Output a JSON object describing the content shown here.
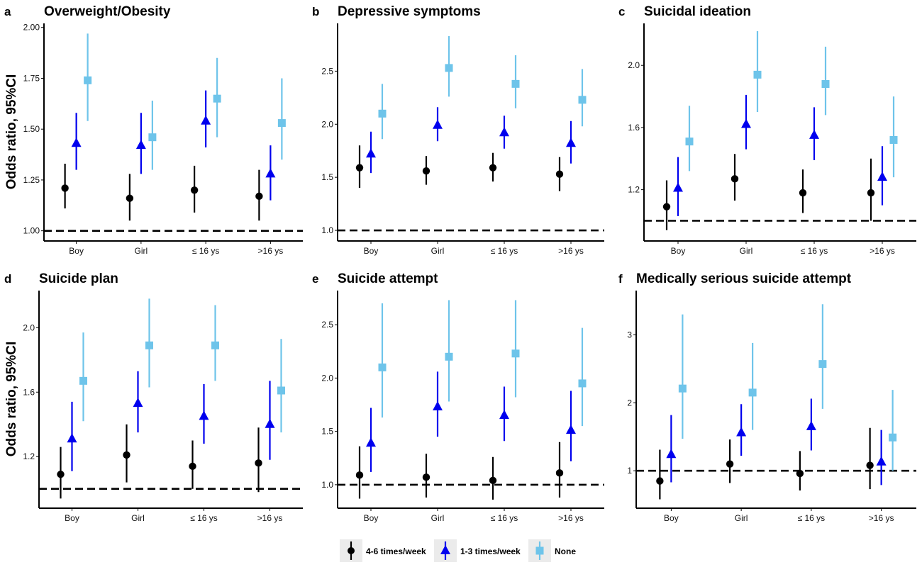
{
  "legend": [
    {
      "name": "4-6 times/week",
      "color": "#000000",
      "marker": "circle"
    },
    {
      "name": "1-3 times/week",
      "color": "#0000ee",
      "marker": "triangle"
    },
    {
      "name": "None",
      "color": "#6ec4ea",
      "marker": "square"
    }
  ],
  "ylabel": "Odds ratio, 95%CI",
  "chart_data": [
    {
      "letter": "a",
      "type": "scatter",
      "title": "Overweight/Obesity",
      "categories": [
        "Boy",
        "Girl",
        "≤ 16 ys",
        ">16 ys"
      ],
      "ylim": [
        0.95,
        2.02
      ],
      "yticks": [
        1.0,
        1.25,
        1.5,
        1.75,
        2.0
      ],
      "ytick_labels": [
        "1.00",
        "1.25",
        "1.50",
        "1.75",
        "2.00"
      ],
      "reference_line": 1,
      "series": [
        {
          "name": "4-6 times/week",
          "values": [
            1.21,
            1.16,
            1.2,
            1.17
          ],
          "lower": [
            1.11,
            1.05,
            1.09,
            1.05
          ],
          "upper": [
            1.33,
            1.28,
            1.32,
            1.3
          ]
        },
        {
          "name": "1-3 times/week",
          "values": [
            1.43,
            1.42,
            1.54,
            1.28
          ],
          "lower": [
            1.3,
            1.28,
            1.41,
            1.15
          ],
          "upper": [
            1.58,
            1.58,
            1.69,
            1.42
          ]
        },
        {
          "name": "None",
          "values": [
            1.74,
            1.46,
            1.65,
            1.53
          ],
          "lower": [
            1.54,
            1.3,
            1.46,
            1.35
          ],
          "upper": [
            1.97,
            1.64,
            1.85,
            1.75
          ]
        }
      ]
    },
    {
      "letter": "b",
      "type": "scatter",
      "title": "Depressive symptoms",
      "categories": [
        "Boy",
        "Girl",
        "≤ 16 ys",
        ">16 ys"
      ],
      "ylim": [
        0.9,
        2.95
      ],
      "yticks": [
        1.0,
        1.5,
        2.0,
        2.5
      ],
      "ytick_labels": [
        "1.0",
        "1.5",
        "2.0",
        "2.5"
      ],
      "reference_line": 1,
      "series": [
        {
          "name": "4-6 times/week",
          "values": [
            1.59,
            1.56,
            1.59,
            1.53
          ],
          "lower": [
            1.4,
            1.43,
            1.46,
            1.37
          ],
          "upper": [
            1.8,
            1.7,
            1.73,
            1.69
          ]
        },
        {
          "name": "1-3 times/week",
          "values": [
            1.72,
            1.99,
            1.92,
            1.82
          ],
          "lower": [
            1.54,
            1.84,
            1.77,
            1.63
          ],
          "upper": [
            1.93,
            2.16,
            2.08,
            2.03
          ]
        },
        {
          "name": "None",
          "values": [
            2.1,
            2.53,
            2.38,
            2.23
          ],
          "lower": [
            1.86,
            2.26,
            2.15,
            1.98
          ],
          "upper": [
            2.38,
            2.83,
            2.65,
            2.52
          ]
        }
      ]
    },
    {
      "letter": "c",
      "type": "scatter",
      "title": "Suicidal ideation",
      "categories": [
        "Boy",
        "Girl",
        "≤ 16 ys",
        ">16 ys"
      ],
      "ylim": [
        0.87,
        2.27
      ],
      "yticks": [
        1.2,
        1.6,
        2.0
      ],
      "ytick_labels": [
        "1.2",
        "1.6",
        "2.0"
      ],
      "reference_line": 1,
      "series": [
        {
          "name": "4-6 times/week",
          "values": [
            1.09,
            1.27,
            1.18,
            1.18
          ],
          "lower": [
            0.94,
            1.13,
            1.05,
            1.0
          ],
          "upper": [
            1.26,
            1.43,
            1.33,
            1.4
          ]
        },
        {
          "name": "1-3 times/week",
          "values": [
            1.21,
            1.62,
            1.55,
            1.28
          ],
          "lower": [
            1.03,
            1.46,
            1.39,
            1.1
          ],
          "upper": [
            1.41,
            1.81,
            1.73,
            1.48
          ]
        },
        {
          "name": "None",
          "values": [
            1.51,
            1.94,
            1.88,
            1.52
          ],
          "lower": [
            1.32,
            1.7,
            1.68,
            1.28
          ],
          "upper": [
            1.74,
            2.22,
            2.12,
            1.8
          ]
        }
      ]
    },
    {
      "letter": "d",
      "type": "scatter",
      "title": "Suicide plan",
      "categories": [
        "Boy",
        "Girl",
        "≤ 16 ys",
        ">16 ys"
      ],
      "ylim": [
        0.88,
        2.23
      ],
      "yticks": [
        1.2,
        1.6,
        2.0
      ],
      "ytick_labels": [
        "1.2",
        "1.6",
        "2.0"
      ],
      "reference_line": 1,
      "series": [
        {
          "name": "4-6 times/week",
          "values": [
            1.09,
            1.21,
            1.14,
            1.16
          ],
          "lower": [
            0.94,
            1.04,
            1.0,
            0.98
          ],
          "upper": [
            1.26,
            1.4,
            1.3,
            1.38
          ]
        },
        {
          "name": "1-3 times/week",
          "values": [
            1.31,
            1.53,
            1.45,
            1.4
          ],
          "lower": [
            1.11,
            1.35,
            1.28,
            1.18
          ],
          "upper": [
            1.54,
            1.73,
            1.65,
            1.67
          ]
        },
        {
          "name": "None",
          "values": [
            1.67,
            1.89,
            1.89,
            1.61
          ],
          "lower": [
            1.42,
            1.63,
            1.67,
            1.35
          ],
          "upper": [
            1.97,
            2.18,
            2.14,
            1.93
          ]
        }
      ]
    },
    {
      "letter": "e",
      "type": "scatter",
      "title": "Suicide attempt",
      "categories": [
        "Boy",
        "Girl",
        "≤ 16 ys",
        ">16 ys"
      ],
      "ylim": [
        0.78,
        2.82
      ],
      "yticks": [
        1.0,
        1.5,
        2.0,
        2.5
      ],
      "ytick_labels": [
        "1.0",
        "1.5",
        "2.0",
        "2.5"
      ],
      "reference_line": 1,
      "series": [
        {
          "name": "4-6 times/week",
          "values": [
            1.09,
            1.07,
            1.04,
            1.11
          ],
          "lower": [
            0.87,
            0.88,
            0.86,
            0.88
          ],
          "upper": [
            1.36,
            1.29,
            1.26,
            1.4
          ]
        },
        {
          "name": "1-3 times/week",
          "values": [
            1.39,
            1.73,
            1.65,
            1.51
          ],
          "lower": [
            1.12,
            1.45,
            1.41,
            1.22
          ],
          "upper": [
            1.72,
            2.06,
            1.92,
            1.88
          ]
        },
        {
          "name": "None",
          "values": [
            2.1,
            2.2,
            2.23,
            1.95
          ],
          "lower": [
            1.63,
            1.78,
            1.82,
            1.55
          ],
          "upper": [
            2.7,
            2.73,
            2.73,
            2.47
          ]
        }
      ]
    },
    {
      "letter": "f",
      "type": "scatter",
      "title": "Medically serious suicide attempt",
      "categories": [
        "Boy",
        "Girl",
        "≤ 16 ys",
        ">16 ys"
      ],
      "ylim": [
        0.45,
        3.65
      ],
      "yticks": [
        1,
        2,
        3
      ],
      "ytick_labels": [
        "1",
        "2",
        "3"
      ],
      "reference_line": 1,
      "series": [
        {
          "name": "4-6 times/week",
          "values": [
            0.85,
            1.1,
            0.96,
            1.08
          ],
          "lower": [
            0.58,
            0.82,
            0.71,
            0.73
          ],
          "upper": [
            1.31,
            1.46,
            1.29,
            1.63
          ]
        },
        {
          "name": "1-3 times/week",
          "values": [
            1.24,
            1.56,
            1.65,
            1.13
          ],
          "lower": [
            0.83,
            1.22,
            1.3,
            0.79
          ],
          "upper": [
            1.82,
            1.98,
            2.06,
            1.6
          ]
        },
        {
          "name": "None",
          "values": [
            2.21,
            2.15,
            2.57,
            1.49
          ],
          "lower": [
            1.47,
            1.6,
            1.91,
            1.0
          ],
          "upper": [
            3.3,
            2.88,
            3.45,
            2.19
          ]
        }
      ]
    }
  ]
}
